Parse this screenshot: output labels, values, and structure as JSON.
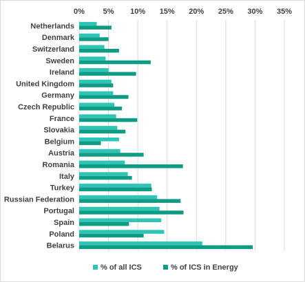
{
  "chart_data": {
    "type": "bar",
    "orientation": "horizontal",
    "categories": [
      "Netherlands",
      "Denmark",
      "Switzerland",
      "Sweden",
      "Ireland",
      "United Kingdom",
      "Germany",
      "Czech Republic",
      "France",
      "Slovakia",
      "Belgium",
      "Austria",
      "Romania",
      "Italy",
      "Turkey",
      "Russian Federation",
      "Portugal",
      "Spain",
      "Poland",
      "Belarus"
    ],
    "series": [
      {
        "name": "% of all ICS",
        "color": "#2EC4B6",
        "values": [
          3.0,
          3.5,
          4.3,
          4.5,
          5.0,
          5.5,
          5.8,
          6.0,
          6.3,
          6.5,
          6.8,
          7.0,
          7.8,
          8.3,
          12.3,
          13.3,
          13.7,
          14.0,
          14.5,
          21.0
        ]
      },
      {
        "name": "% of ICS in Energy",
        "color": "#0E9C84",
        "values": [
          5.5,
          5.0,
          6.8,
          12.2,
          9.7,
          5.8,
          8.4,
          7.3,
          9.9,
          7.9,
          3.7,
          11.0,
          17.7,
          9.0,
          12.4,
          17.3,
          17.8,
          8.5,
          11.0,
          29.6
        ]
      }
    ],
    "xlim": [
      0,
      35
    ],
    "xticks": [
      0,
      5,
      10,
      15,
      20,
      25,
      30,
      35
    ],
    "xtick_labels": [
      "0%",
      "5%",
      "10%",
      "15%",
      "20%",
      "25%",
      "30%",
      "35%"
    ],
    "x_axis_position": "top",
    "grid": true,
    "legend_position": "bottom",
    "title": "",
    "xlabel": "",
    "ylabel": ""
  }
}
